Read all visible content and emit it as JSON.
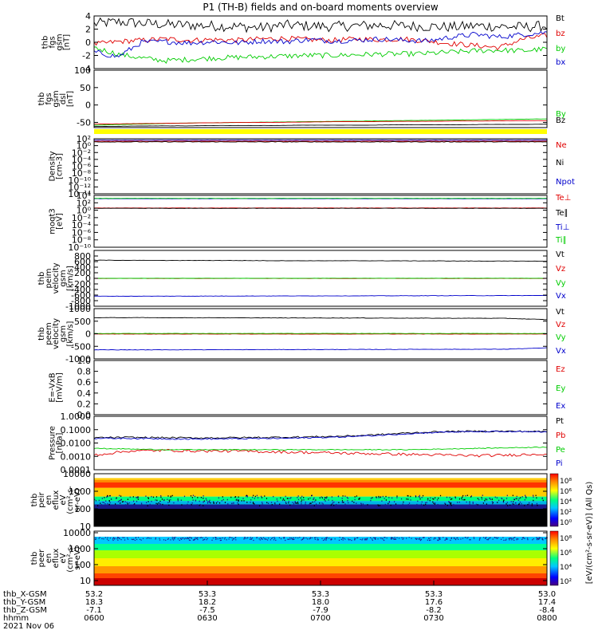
{
  "title": "P1 (TH-B) fields and on-board moments overview",
  "colors": {
    "black": "#000000",
    "red": "#e00000",
    "green": "#00cc00",
    "blue": "#0000cc",
    "yellow": "#ffff00"
  },
  "chart_data": [
    {
      "id": "fgs",
      "type": "line",
      "ylabel": [
        "thb",
        "fgs",
        "gsm",
        "[nT]"
      ],
      "ylim": [
        -4,
        4
      ],
      "ticks": [
        "4",
        "2",
        "0",
        "-2",
        "-4"
      ],
      "tickvals": [
        4,
        2,
        0,
        -2,
        -4
      ],
      "series": [
        {
          "name": "Bt",
          "color": "#000000",
          "values": [
            2.8,
            3.1,
            2.9,
            2.7,
            2.6,
            2.5,
            2.4,
            2.2,
            2.6,
            2.5,
            2.4,
            2.5,
            2.6,
            2.5,
            2.4,
            2.3,
            2.5,
            2.4,
            2.3,
            2.5
          ],
          "noise": 0.8
        },
        {
          "name": "bz",
          "color": "#e00000",
          "values": [
            -0.3,
            0.1,
            0.3,
            0.5,
            0.3,
            0.4,
            0.3,
            0.5,
            0.6,
            0.4,
            0.3,
            0.5,
            0.4,
            0.5,
            0.2,
            -0.2,
            -0.5,
            -0.8,
            0.5,
            1.0
          ],
          "noise": 0.4
        },
        {
          "name": "by",
          "color": "#00cc00",
          "values": [
            -0.8,
            -1.8,
            -2.4,
            -2.8,
            -2.6,
            -2.4,
            -2.3,
            -2.2,
            -2.1,
            -2.0,
            -2.0,
            -1.9,
            -1.8,
            -1.8,
            -1.7,
            -1.5,
            -1.3,
            -1.2,
            -1.3,
            -1.0
          ],
          "noise": 0.4
        },
        {
          "name": "bx",
          "color": "#0000cc",
          "values": [
            -1.5,
            -2.2,
            0.0,
            0.1,
            -0.1,
            0.1,
            -0.1,
            0.2,
            0.1,
            0.4,
            0.2,
            0.3,
            0.5,
            0.3,
            0.2,
            0.8,
            1.2,
            0.8,
            1.2,
            1.5
          ],
          "noise": 0.4
        }
      ]
    },
    {
      "id": "fgs_dsl",
      "type": "line",
      "ylabel": [
        "thb",
        "fgs",
        "gsm",
        "dsl",
        "[nT]"
      ],
      "ylim": [
        -65,
        100
      ],
      "ticks": [
        "100",
        "50",
        "0",
        "-50"
      ],
      "tickvals": [
        100,
        50,
        0,
        -50
      ],
      "series": [
        {
          "name": "By",
          "color": "#00cc00",
          "values": [
            -58,
            -56,
            -54,
            -52,
            -51,
            -50,
            -49,
            -48,
            -47,
            -46,
            -45,
            -44,
            -43,
            -42,
            -41,
            -40
          ],
          "noise": 0.3
        },
        {
          "name": "Bz",
          "color": "#000000",
          "values": [
            -62,
            -61,
            -60,
            -60,
            -59,
            -59,
            -59,
            -58,
            -58,
            -58,
            -57,
            -57,
            -57,
            -56,
            -56,
            -55
          ],
          "noise": 0.2
        },
        {
          "name": "",
          "color": "#e00000",
          "values": [
            -55,
            -54,
            -53,
            -52,
            -51,
            -50,
            -50,
            -49,
            -48,
            -48,
            -47,
            -47,
            -46,
            -46,
            -45,
            -45
          ],
          "noise": 0.2
        }
      ]
    },
    {
      "id": "density",
      "type": "line",
      "ylabel": [
        "Density",
        "[cm-3]"
      ],
      "ylim": [
        -14,
        2
      ],
      "log": true,
      "ticks": [
        "10²",
        "10⁰",
        "10⁻²",
        "10⁻⁴",
        "10⁻⁶",
        "10⁻⁸",
        "10⁻¹⁰",
        "10⁻¹²",
        "10⁻¹⁴"
      ],
      "tickvals": [
        2,
        0,
        -2,
        -4,
        -6,
        -8,
        -10,
        -12,
        -14
      ],
      "series": [
        {
          "name": "Ne",
          "color": "#e00000",
          "values": [
            1.3,
            1.3,
            1.3,
            1.3
          ],
          "noise": 0.05
        },
        {
          "name": "Ni",
          "color": "#000000",
          "values": [
            1.1,
            1.1,
            1.1,
            1.1
          ],
          "noise": 0.08
        },
        {
          "name": "Npot",
          "color": "#0000cc",
          "values": [
            1.6,
            1.6,
            1.6,
            1.6
          ],
          "noise": 0.02
        }
      ]
    },
    {
      "id": "temp",
      "type": "line",
      "ylabel": [
        "moqt3",
        "[eV]"
      ],
      "ylim": [
        -10,
        4
      ],
      "log": true,
      "ticks": [
        "10⁴",
        "10²",
        "10⁰",
        "10⁻²",
        "10⁻⁴",
        "10⁻⁶",
        "10⁻⁸",
        "10⁻¹⁰"
      ],
      "tickvals": [
        4,
        2,
        0,
        -2,
        -4,
        -6,
        -8,
        -10
      ],
      "series": [
        {
          "name": "Te⊥",
          "color": "#e00000",
          "values": [
            0.6,
            0.6,
            0.6,
            0.6
          ],
          "noise": 0.03
        },
        {
          "name": "Te∥",
          "color": "#000000",
          "values": [
            0.5,
            0.5,
            0.5,
            0.5
          ],
          "noise": 0.03
        },
        {
          "name": "Ti⊥",
          "color": "#0000cc",
          "values": [
            3.1,
            3.1,
            3.1,
            3.1
          ],
          "noise": 0.02
        },
        {
          "name": "Ti∥",
          "color": "#00cc00",
          "values": [
            3.2,
            3.2,
            3.2,
            3.2
          ],
          "noise": 0.02
        }
      ]
    },
    {
      "id": "peim",
      "type": "line",
      "ylabel": [
        "thb",
        "peim",
        "velocity",
        "gsm",
        "[km/s]"
      ],
      "ylim": [
        -1000,
        1000
      ],
      "ticks": [
        "800",
        "600",
        "400",
        "200",
        "0",
        "-200",
        "-400",
        "-600",
        "-800",
        "-1000"
      ],
      "tickvals": [
        800,
        600,
        400,
        200,
        0,
        -200,
        -400,
        -600,
        -800,
        -1000
      ],
      "series": [
        {
          "name": "Vt",
          "color": "#000000",
          "values": [
            650,
            645,
            640,
            640,
            635,
            630,
            630,
            628,
            625,
            620,
            618,
            615
          ],
          "noise": 6
        },
        {
          "name": "Vz",
          "color": "#e00000",
          "values": [
            -5,
            -5,
            -6,
            -5,
            -5,
            -6,
            -6,
            -5,
            -5,
            -6,
            -5,
            -5
          ],
          "noise": 3
        },
        {
          "name": "Vy",
          "color": "#00cc00",
          "values": [
            0,
            2,
            2,
            3,
            2,
            3,
            4,
            3,
            4,
            5,
            4,
            4
          ],
          "noise": 3
        },
        {
          "name": "Vx",
          "color": "#0000cc",
          "values": [
            -640,
            -640,
            -638,
            -635,
            -632,
            -630,
            -628,
            -625,
            -622,
            -620,
            -618,
            -615
          ],
          "noise": 6
        }
      ]
    },
    {
      "id": "peem",
      "type": "line",
      "ylabel": [
        "thb",
        "peem",
        "velocity",
        "gsm",
        "[km/s]"
      ],
      "ylim": [
        -1000,
        1000
      ],
      "ticks": [
        "1000",
        "500",
        "0",
        "-500",
        "-1000"
      ],
      "tickvals": [
        1000,
        500,
        0,
        -500,
        -1000
      ],
      "series": [
        {
          "name": "Vt",
          "color": "#000000",
          "values": [
            640,
            640,
            638,
            635,
            632,
            630,
            628,
            625,
            620,
            618,
            615,
            560
          ],
          "noise": 8
        },
        {
          "name": "Vz",
          "color": "#e00000",
          "values": [
            -10,
            -10,
            -12,
            -10,
            -10,
            -12,
            -12,
            -10,
            -10,
            -12,
            -10,
            -10
          ],
          "noise": 5
        },
        {
          "name": "Vy",
          "color": "#00cc00",
          "values": [
            10,
            10,
            12,
            10,
            10,
            12,
            12,
            10,
            10,
            12,
            10,
            10
          ],
          "noise": 5
        },
        {
          "name": "Vx",
          "color": "#0000cc",
          "values": [
            -640,
            -640,
            -638,
            -635,
            -632,
            -630,
            -628,
            -625,
            -620,
            -618,
            -615,
            -560
          ],
          "noise": 8
        }
      ]
    },
    {
      "id": "efield",
      "type": "line",
      "ylabel": [
        "E=-VxB",
        "[mV/m]"
      ],
      "ylim": [
        0,
        1
      ],
      "ticks": [
        "1.0",
        "0.8",
        "0.6",
        "0.4",
        "0.2",
        "0.0"
      ],
      "tickvals": [
        1.0,
        0.8,
        0.6,
        0.4,
        0.2,
        0.0
      ],
      "series": [
        {
          "name": "Ez",
          "color": "#e00000",
          "values": []
        },
        {
          "name": "Ey",
          "color": "#00cc00",
          "values": []
        },
        {
          "name": "Ex",
          "color": "#0000cc",
          "values": []
        }
      ]
    },
    {
      "id": "pressure",
      "type": "line",
      "ylabel": [
        "Pressure",
        "[nPa]"
      ],
      "ylim": [
        -4,
        0
      ],
      "log": true,
      "ticks": [
        "1.0000",
        "0.1000",
        "0.0100",
        "0.0010",
        "0.0001"
      ],
      "tickvals": [
        0,
        -1,
        -2,
        -3,
        -4
      ],
      "series": [
        {
          "name": "Pt",
          "color": "#000000",
          "values": [
            -1.6,
            -1.58,
            -1.6,
            -1.62,
            -1.6,
            -1.58,
            -1.55,
            -1.5,
            -1.4,
            -1.25,
            -1.15,
            -1.12,
            -1.12,
            -1.15
          ],
          "noise": 0.06
        },
        {
          "name": "Pb",
          "color": "#e00000",
          "values": [
            -2.9,
            -2.6,
            -2.55,
            -2.6,
            -2.6,
            -2.65,
            -2.7,
            -2.75,
            -2.8,
            -2.85,
            -2.9,
            -2.95,
            -2.9,
            -2.8
          ],
          "noise": 0.1
        },
        {
          "name": "Pe",
          "color": "#00cc00",
          "values": [
            -2.4,
            -2.45,
            -2.5,
            -2.5,
            -2.5,
            -2.5,
            -2.5,
            -2.5,
            -2.5,
            -2.5,
            -2.45,
            -2.4,
            -2.35,
            -2.3
          ],
          "noise": 0.03
        },
        {
          "name": "Pi",
          "color": "#0000cc",
          "values": [
            -1.65,
            -1.65,
            -1.68,
            -1.7,
            -1.68,
            -1.66,
            -1.62,
            -1.55,
            -1.45,
            -1.3,
            -1.18,
            -1.15,
            -1.15,
            -1.18
          ],
          "noise": 0.05
        }
      ]
    },
    {
      "id": "peir",
      "type": "heatmap",
      "ylabel": [
        "thb",
        "peir",
        "en",
        "eflux",
        "eV",
        "(cm²-s-",
        "sr-eV)"
      ],
      "ylim": [
        1,
        4
      ],
      "log": true,
      "ticks": [
        "10000",
        "1000",
        "100",
        "10"
      ],
      "tickvals": [
        4,
        3,
        2,
        1
      ],
      "bands": [
        [
          1,
          2.0,
          "#000000"
        ],
        [
          2.0,
          2.25,
          "#1a1a8c"
        ],
        [
          2.25,
          2.45,
          "#00b4e6"
        ],
        [
          2.45,
          2.7,
          "#00ff80"
        ],
        [
          2.7,
          3.2,
          "#ffcc00"
        ],
        [
          3.2,
          3.5,
          "#ff3300"
        ],
        [
          3.5,
          3.65,
          "#ff8800"
        ],
        [
          3.65,
          3.75,
          "#ffcc00"
        ],
        [
          3.75,
          4.0,
          "#ffffff"
        ]
      ]
    },
    {
      "id": "peer",
      "type": "heatmap",
      "ylabel": [
        "thb",
        "peer",
        "en",
        "eflux",
        "eV",
        "(cm²-s-",
        "sr-eV)"
      ],
      "ylim": [
        0.7,
        4.1
      ],
      "log": true,
      "ticks": [
        "10000",
        "1000",
        "100",
        "10"
      ],
      "tickvals": [
        4,
        3,
        2,
        1
      ],
      "bands": [
        [
          0.7,
          1.15,
          "#cc0000"
        ],
        [
          1.15,
          1.45,
          "#ff4400"
        ],
        [
          1.45,
          1.9,
          "#ff9900"
        ],
        [
          1.9,
          2.4,
          "#ffee00"
        ],
        [
          2.4,
          2.9,
          "#aaff00"
        ],
        [
          2.9,
          3.3,
          "#00ff99"
        ],
        [
          3.3,
          3.75,
          "#00c8ff"
        ],
        [
          3.75,
          4.1,
          "#ffffff"
        ]
      ]
    }
  ],
  "right_legends": [
    [
      "Bt",
      "bz",
      "by",
      "bx"
    ],
    [
      "By",
      "Bz"
    ],
    [
      "Ne",
      "Ni",
      "Npot"
    ],
    [
      "Te⊥",
      "Te∥",
      "Ti⊥",
      "Ti∥"
    ],
    [
      "Vt",
      "Vz",
      "Vy",
      "Vx"
    ],
    [
      "Vt",
      "Vz",
      "Vy",
      "Vx"
    ],
    [
      "Ez",
      "Ey",
      "Ex"
    ],
    [
      "Pt",
      "Pb",
      "Pe",
      "Pi"
    ]
  ],
  "colorbar": {
    "label": "[eV/(cm²-s-sr-eV)] (All Qs)",
    "ticks1": [
      "10⁸",
      "10⁶",
      "10⁴",
      "10²",
      "10⁰"
    ],
    "ticks2": [
      "10⁸",
      "10⁶",
      "10⁴",
      "10²"
    ]
  },
  "xaxis": {
    "times": [
      "0600",
      "0630",
      "0700",
      "0730",
      "0800"
    ],
    "rows": [
      {
        "label": "thb_X-GSM",
        "values": [
          "53.2",
          "53.3",
          "53.3",
          "53.3",
          "53.0"
        ]
      },
      {
        "label": "thb_Y-GSM",
        "values": [
          "18.3",
          "18.2",
          "18.0",
          "17.6",
          "17.4"
        ]
      },
      {
        "label": "thb_Z-GSM",
        "values": [
          "-7.1",
          "-7.5",
          "-7.9",
          "-8.2",
          "-8.4"
        ]
      },
      {
        "label": "hhmm",
        "values": [
          "0600",
          "0630",
          "0700",
          "0730",
          "0800"
        ]
      }
    ],
    "date": "2021 Nov 06"
  }
}
